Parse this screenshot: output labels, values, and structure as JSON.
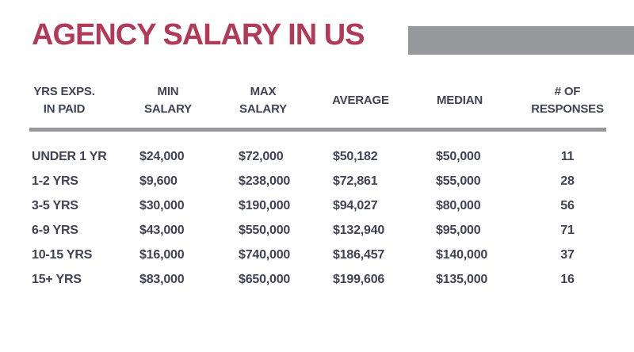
{
  "slide": {
    "title": "AGENCY SALARY IN US"
  },
  "colors": {
    "accent_red": "#B03A58",
    "bar_gray": "#97989B",
    "text_slate": "#3F4355",
    "background": "#FFFFFF"
  },
  "table": {
    "headers": [
      {
        "lines": [
          "YRS EXPS.",
          "IN PAID"
        ]
      },
      {
        "lines": [
          "MIN",
          "SALARY"
        ]
      },
      {
        "lines": [
          "MAX",
          "SALARY"
        ]
      },
      {
        "lines": [
          "AVERAGE"
        ]
      },
      {
        "lines": [
          "MEDIAN"
        ]
      },
      {
        "lines": [
          "# OF",
          "RESPONSES"
        ]
      }
    ]
  },
  "chart_data": {
    "type": "table",
    "title": "AGENCY SALARY IN US",
    "columns": [
      "YRS EXPS. IN PAID",
      "MIN SALARY",
      "MAX SALARY",
      "AVERAGE",
      "MEDIAN",
      "# OF RESPONSES"
    ],
    "rows": [
      [
        "UNDER 1 YR",
        "$24,000",
        "$72,000",
        "$50,182",
        "$50,000",
        "11"
      ],
      [
        "1-2 YRS",
        "$9,600",
        "$238,000",
        "$72,861",
        "$55,000",
        "28"
      ],
      [
        "3-5 YRS",
        "$30,000",
        "$190,000",
        "$94,027",
        "$80,000",
        "56"
      ],
      [
        "6-9 YRS",
        "$43,000",
        "$550,000",
        "$132,940",
        "$95,000",
        "71"
      ],
      [
        "10-15 YRS",
        "$16,000",
        "$740,000",
        "$186,457",
        "$140,000",
        "37"
      ],
      [
        "15+ YRS",
        "$83,000",
        "$650,000",
        "$199,606",
        "$135,000",
        "16"
      ]
    ],
    "layout": {
      "header_alignment": "center",
      "body_alignment": "left",
      "last_column_alignment": "center",
      "gridlines": "single horizontal divider under header"
    }
  }
}
